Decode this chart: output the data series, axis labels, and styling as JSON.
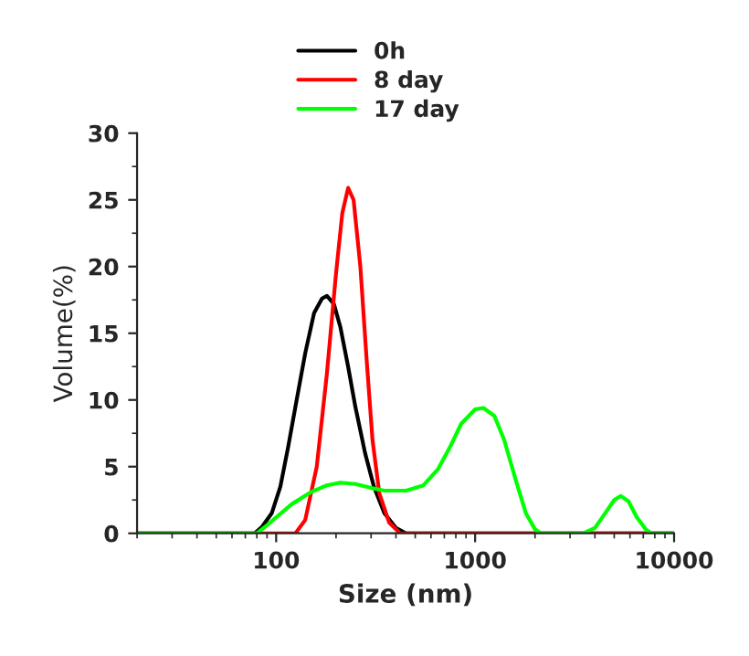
{
  "chart_data": {
    "type": "line",
    "xlabel": "Size (nm)",
    "ylabel": "Volume(%)",
    "log": "x",
    "xlim": [
      20,
      10000
    ],
    "xticks": [
      100,
      1000,
      10000
    ],
    "ylim": [
      0,
      30
    ],
    "yticks": [
      0,
      5,
      10,
      15,
      20,
      25,
      30
    ],
    "grid": false,
    "legend": "top",
    "marker": "none",
    "line_style": "solid",
    "series": [
      {
        "name": "0h",
        "color": "#000000",
        "x": [
          20,
          78,
          85,
          95,
          105,
          115,
          125,
          140,
          155,
          170,
          180,
          195,
          210,
          230,
          250,
          280,
          310,
          350,
          400,
          450,
          10000
        ],
        "values": [
          0,
          0,
          0.5,
          1.5,
          3.5,
          6.5,
          9.5,
          13.5,
          16.5,
          17.6,
          17.8,
          17.2,
          15.5,
          12.5,
          9.5,
          6,
          3.5,
          1.5,
          0.4,
          0,
          0
        ]
      },
      {
        "name": "8 day",
        "color": "#ff0000",
        "x": [
          20,
          125,
          140,
          160,
          180,
          200,
          215,
          230,
          245,
          265,
          285,
          305,
          330,
          370,
          420,
          10000
        ],
        "values": [
          0,
          0,
          1,
          5,
          12,
          19.5,
          24,
          25.9,
          25,
          20,
          13,
          7,
          3,
          0.8,
          0,
          0
        ]
      },
      {
        "name": "17 day",
        "color": "#00ff00",
        "x": [
          20,
          80,
          90,
          100,
          120,
          150,
          180,
          210,
          250,
          300,
          350,
          450,
          550,
          650,
          750,
          850,
          1000,
          1100,
          1250,
          1400,
          1600,
          1800,
          2000,
          2150,
          3500,
          4000,
          4500,
          5000,
          5400,
          5900,
          6500,
          7200,
          7700,
          10000
        ],
        "values": [
          0,
          0,
          0.6,
          1.2,
          2.2,
          3.1,
          3.6,
          3.8,
          3.7,
          3.4,
          3.2,
          3.2,
          3.6,
          4.8,
          6.5,
          8.2,
          9.3,
          9.4,
          8.8,
          7,
          4,
          1.5,
          0.3,
          0,
          0,
          0.4,
          1.5,
          2.5,
          2.8,
          2.4,
          1.2,
          0.3,
          0,
          0
        ]
      }
    ]
  }
}
